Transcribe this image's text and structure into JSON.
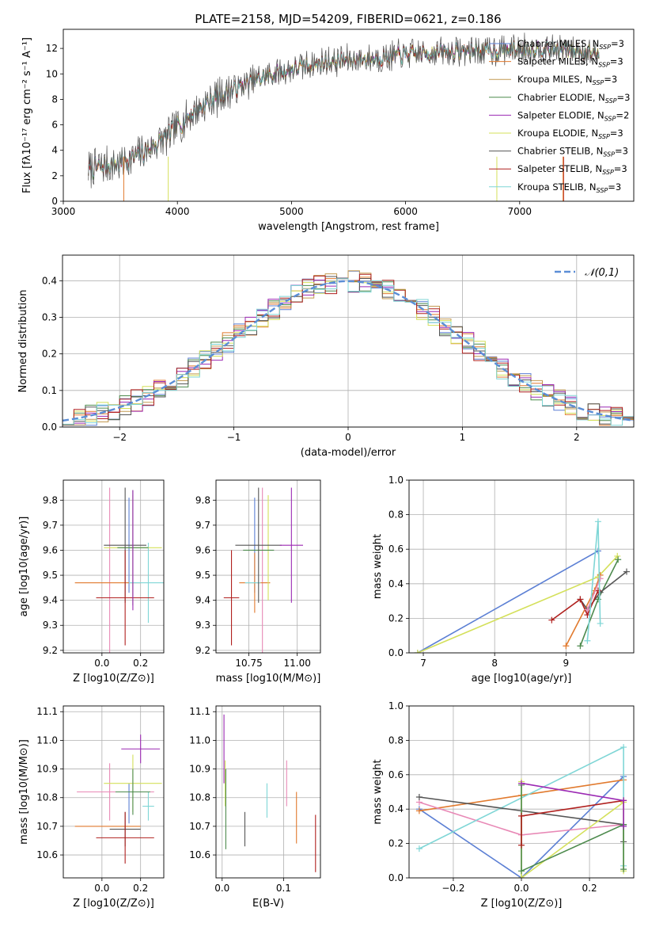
{
  "figure": {
    "suptitle": "PLATE=2158, MJD=54209, FIBERID=0621, z=0.186"
  },
  "colors": {
    "Chabrier MILES": "#5b7fd4",
    "Salpeter MILES": "#e17a2e",
    "Kroupa MILES": "#c39a52",
    "Chabrier ELODIE": "#4d8a4d",
    "Salpeter ELODIE": "#9b29b3",
    "Kroupa ELODIE": "#d4e05a",
    "Chabrier STELIB": "#555555",
    "Salpeter STELIB": "#b0201e",
    "Kroupa STELIB": "#7fd6d6",
    "pink": "#e889b6",
    "normal": "#5b8ed6"
  },
  "chart_data": [
    {
      "id": "spectrum",
      "type": "line",
      "title": "PLATE=2158, MJD=54209, FIBERID=0621, z=0.186",
      "xlabel": "wavelength [Angstrom, rest frame]",
      "ylabel": "Flux [fλ10⁻¹⁷ erg cm⁻² s⁻¹ A⁻¹]",
      "xlim": [
        3000,
        8000
      ],
      "ylim": [
        0,
        13.5
      ],
      "xticks": [
        3000,
        4000,
        5000,
        6000,
        7000
      ],
      "yticks": [
        0,
        2,
        4,
        6,
        8,
        10,
        12
      ],
      "grid": false,
      "legend_position": "top-right",
      "legend": [
        "Chabrier MILES, N_SSP=3",
        "Salpeter MILES, N_SSP=3",
        "Kroupa MILES, N_SSP=3",
        "Chabrier ELODIE, N_SSP=3",
        "Salpeter ELODIE, N_SSP=2",
        "Kroupa ELODIE, N_SSP=3",
        "Chabrier STELIB, N_SSP=3",
        "Salpeter STELIB, N_SSP=3",
        "Kroupa STELIB, N_SSP=3"
      ],
      "legend_names": [
        "Chabrier MILES",
        "Salpeter MILES",
        "Kroupa MILES",
        "Chabrier ELODIE",
        "Salpeter ELODIE",
        "Kroupa ELODIE",
        "Chabrier STELIB",
        "Salpeter STELIB",
        "Kroupa STELIB"
      ],
      "legend_ssp": [
        "3",
        "3",
        "3",
        "3",
        "2",
        "3",
        "3",
        "3",
        "3"
      ],
      "continuum": {
        "x": [
          3220,
          3500,
          3700,
          3900,
          4000,
          4150,
          4300,
          4500,
          4700,
          4900,
          5100,
          5300,
          5500,
          5700,
          5900,
          6100,
          6300,
          6500,
          6700,
          6900,
          7100,
          7300,
          7500,
          7700
        ],
        "y": [
          2.5,
          3.0,
          3.8,
          5.0,
          5.9,
          7.0,
          8.0,
          8.8,
          9.6,
          10.1,
          10.6,
          10.9,
          11.1,
          11.2,
          11.4,
          11.6,
          11.7,
          11.8,
          11.8,
          11.9,
          12.0,
          11.9,
          11.8,
          11.6
        ]
      },
      "wavelength_range": [
        3220,
        7700
      ]
    },
    {
      "id": "residual-hist",
      "type": "histogram",
      "xlabel": "(data-model)/error",
      "ylabel": "Normed distribution",
      "xlim": [
        -2.5,
        2.5
      ],
      "ylim": [
        0,
        0.47
      ],
      "xticks": [
        -2,
        -1,
        0,
        1,
        2
      ],
      "yticks": [
        0.0,
        0.1,
        0.2,
        0.3,
        0.4
      ],
      "grid": true,
      "legend_position": "top-right",
      "reference_label": "𝒩(0,1)",
      "bin_width": 0.1,
      "bin_start": -2.5,
      "series_count": 9
    },
    {
      "id": "age-vs-Z",
      "type": "errorbar",
      "xlabel": "Z [log10(Z/Z⊙)]",
      "ylabel": "age [log10(age/yr)]",
      "xlim": [
        -0.2,
        0.32
      ],
      "ylim": [
        9.19,
        9.88
      ],
      "xticks": [
        0.0,
        0.2
      ],
      "yticks": [
        9.2,
        9.3,
        9.4,
        9.5,
        9.6,
        9.7,
        9.8
      ],
      "grid": true,
      "points": [
        {
          "color": "#e889b6",
          "x": 0.04,
          "xerr": 0.0,
          "y": 9.47,
          "yerr": 0.38
        },
        {
          "color": "#5b7fd4",
          "x": 0.14,
          "xerr": 0.0,
          "y": 9.62,
          "yerr": 0.19
        },
        {
          "color": "#e17a2e",
          "x": 0.03,
          "xerr": 0.17,
          "y": 9.47,
          "yerr": 0.0
        },
        {
          "color": "#7fd6d6",
          "x": 0.24,
          "xerr": 0.1,
          "y": 9.47,
          "yerr": 0.16
        },
        {
          "color": "#d4e05a",
          "x": 0.16,
          "xerr": 0.15,
          "y": 9.61,
          "yerr": 0.21
        },
        {
          "color": "#4d8a4d",
          "x": 0.16,
          "xerr": 0.08,
          "y": 9.61,
          "yerr": 0.23
        },
        {
          "color": "#555555",
          "x": 0.12,
          "xerr": 0.11,
          "y": 9.62,
          "yerr": 0.23
        },
        {
          "color": "#b0201e",
          "x": 0.12,
          "xerr": 0.15,
          "y": 9.41,
          "yerr": 0.19
        },
        {
          "color": "#9b29b3",
          "x": 0.16,
          "xerr": 0.0,
          "y": 9.6,
          "yerr": 0.24
        }
      ]
    },
    {
      "id": "age-vs-mass",
      "type": "errorbar",
      "xlabel": "mass [log10(M/M⊙)]",
      "ylabel": "",
      "xlim": [
        10.58,
        11.12
      ],
      "ylim": [
        9.19,
        9.88
      ],
      "xticks": [
        10.75,
        11.0
      ],
      "yticks": [
        9.2,
        9.3,
        9.4,
        9.5,
        9.6,
        9.7,
        9.8
      ],
      "grid": true,
      "points": [
        {
          "color": "#e889b6",
          "x": 10.82,
          "xerr": 0.0,
          "y": 9.47,
          "yerr": 0.38
        },
        {
          "color": "#5b7fd4",
          "x": 10.78,
          "xerr": 0.0,
          "y": 9.62,
          "yerr": 0.19
        },
        {
          "color": "#e17a2e",
          "x": 10.78,
          "xerr": 0.08,
          "y": 9.47,
          "yerr": 0.12
        },
        {
          "color": "#7fd6d6",
          "x": 10.77,
          "xerr": 0.04,
          "y": 9.47,
          "yerr": 0.0
        },
        {
          "color": "#d4e05a",
          "x": 10.85,
          "xerr": 0.0,
          "y": 9.61,
          "yerr": 0.21
        },
        {
          "color": "#4d8a4d",
          "x": 10.8,
          "xerr": 0.08,
          "y": 9.6,
          "yerr": 0.0
        },
        {
          "color": "#555555",
          "x": 10.8,
          "xerr": 0.12,
          "y": 9.62,
          "yerr": 0.23
        },
        {
          "color": "#b0201e",
          "x": 10.66,
          "xerr": 0.04,
          "y": 9.41,
          "yerr": 0.19
        },
        {
          "color": "#9b29b3",
          "x": 10.97,
          "xerr": 0.06,
          "y": 9.62,
          "yerr": 0.23
        }
      ]
    },
    {
      "id": "weight-vs-age",
      "type": "line",
      "xlabel": "age [log10(age/yr)]",
      "ylabel": "mass weight",
      "xlim": [
        6.8,
        9.95
      ],
      "ylim": [
        0,
        1
      ],
      "xticks": [
        7,
        8,
        9
      ],
      "yticks": [
        0.0,
        0.2,
        0.4,
        0.6,
        0.8,
        1.0
      ],
      "grid": true,
      "series": [
        {
          "color": "#5b7fd4",
          "x": [
            6.92,
            9.45
          ],
          "y": [
            0.0,
            0.59
          ]
        },
        {
          "color": "#d4e05a",
          "x": [
            6.92,
            9.45,
            9.72
          ],
          "y": [
            0.0,
            0.44,
            0.56
          ]
        },
        {
          "color": "#e17a2e",
          "x": [
            9.0,
            9.4,
            9.48
          ],
          "y": [
            0.04,
            0.36,
            0.45
          ]
        },
        {
          "color": "#4d8a4d",
          "x": [
            9.2,
            9.45,
            9.73
          ],
          "y": [
            0.04,
            0.31,
            0.54
          ]
        },
        {
          "color": "#555555",
          "x": [
            9.2,
            9.3,
            9.48,
            9.85
          ],
          "y": [
            0.31,
            0.25,
            0.35,
            0.47
          ]
        },
        {
          "color": "#b0201e",
          "x": [
            8.8,
            9.2,
            9.3,
            9.45
          ],
          "y": [
            0.19,
            0.31,
            0.22,
            0.36
          ]
        },
        {
          "color": "#e889b6",
          "x": [
            9.3,
            9.48
          ],
          "y": [
            0.25,
            0.43
          ]
        },
        {
          "color": "#7fd6d6",
          "x": [
            9.3,
            9.45,
            9.48
          ],
          "y": [
            0.07,
            0.76,
            0.17
          ]
        }
      ]
    },
    {
      "id": "mass-vs-Z",
      "type": "errorbar",
      "xlabel": "Z [log10(Z/Z⊙)]",
      "ylabel": "mass [log10(M/M⊙)]",
      "xlim": [
        -0.2,
        0.32
      ],
      "ylim": [
        10.52,
        11.12
      ],
      "xticks": [
        0.0,
        0.2
      ],
      "yticks": [
        10.6,
        10.7,
        10.8,
        10.9,
        11.0,
        11.1
      ],
      "grid": true,
      "points": [
        {
          "color": "#e889b6",
          "x": 0.07,
          "xerr": 0.2,
          "y": 10.82,
          "yerr": 0.0
        },
        {
          "color": "#e889b6",
          "x": 0.04,
          "xerr": 0.0,
          "y": 10.82,
          "yerr": 0.1
        },
        {
          "color": "#5b7fd4",
          "x": 0.14,
          "xerr": 0.0,
          "y": 10.78,
          "yerr": 0.07
        },
        {
          "color": "#e17a2e",
          "x": 0.03,
          "xerr": 0.17,
          "y": 10.7,
          "yerr": 0.0
        },
        {
          "color": "#7fd6d6",
          "x": 0.24,
          "xerr": 0.03,
          "y": 10.77,
          "yerr": 0.05
        },
        {
          "color": "#d4e05a",
          "x": 0.16,
          "xerr": 0.15,
          "y": 10.85,
          "yerr": 0.1
        },
        {
          "color": "#4d8a4d",
          "x": 0.16,
          "xerr": 0.09,
          "y": 10.82,
          "yerr": 0.08
        },
        {
          "color": "#555555",
          "x": 0.12,
          "xerr": 0.08,
          "y": 10.69,
          "yerr": 0.06
        },
        {
          "color": "#b0201e",
          "x": 0.12,
          "xerr": 0.15,
          "y": 10.66,
          "yerr": 0.09
        },
        {
          "color": "#9b29b3",
          "x": 0.2,
          "xerr": 0.1,
          "y": 10.97,
          "yerr": 0.05
        }
      ]
    },
    {
      "id": "mass-vs-ebv",
      "type": "errorbar",
      "xlabel": "E(B-V)",
      "ylabel": "",
      "xlim": [
        -0.01,
        0.16
      ],
      "ylim": [
        10.52,
        11.12
      ],
      "xticks": [
        0.0,
        0.1
      ],
      "yticks": [
        10.6,
        10.7,
        10.8,
        10.9,
        11.0,
        11.1
      ],
      "grid": true,
      "points": [
        {
          "color": "#9b29b3",
          "x": 0.003,
          "xerr": 0.0,
          "y": 10.97,
          "yerr": 0.12
        },
        {
          "color": "#d4e05a",
          "x": 0.005,
          "xerr": 0.0,
          "y": 10.85,
          "yerr": 0.08
        },
        {
          "color": "#4d8a4d",
          "x": 0.006,
          "xerr": 0.0,
          "y": 10.76,
          "yerr": 0.14
        },
        {
          "color": "#555555",
          "x": 0.037,
          "xerr": 0.0,
          "y": 10.69,
          "yerr": 0.06
        },
        {
          "color": "#7fd6d6",
          "x": 0.073,
          "xerr": 0.0,
          "y": 10.79,
          "yerr": 0.06
        },
        {
          "color": "#e889b6",
          "x": 0.105,
          "xerr": 0.0,
          "y": 10.85,
          "yerr": 0.08
        },
        {
          "color": "#e17a2e",
          "x": 0.121,
          "xerr": 0.0,
          "y": 10.73,
          "yerr": 0.09
        },
        {
          "color": "#b0201e",
          "x": 0.152,
          "xerr": 0.0,
          "y": 10.64,
          "yerr": 0.1
        }
      ]
    },
    {
      "id": "weight-vs-Z",
      "type": "line",
      "xlabel": "Z [log10(Z/Z⊙)]",
      "ylabel": "mass weight",
      "xlim": [
        -0.33,
        0.33
      ],
      "ylim": [
        0,
        1
      ],
      "xticks": [
        -0.2,
        0.0,
        0.2
      ],
      "yticks": [
        0.0,
        0.2,
        0.4,
        0.6,
        0.8,
        1.0
      ],
      "grid": true,
      "series": [
        {
          "color": "#5b7fd4",
          "x": [
            -0.3,
            0.0,
            0.3
          ],
          "y": [
            0.4,
            0.0,
            0.59
          ]
        },
        {
          "color": "#e17a2e",
          "x": [
            -0.3,
            0.0,
            0.3
          ],
          "y": [
            0.39,
            0.48,
            0.57
          ]
        },
        {
          "color": "#e889b6",
          "x": [
            -0.3,
            0.0,
            0.3
          ],
          "y": [
            0.44,
            0.25,
            0.31
          ]
        },
        {
          "color": "#7fd6d6",
          "x": [
            -0.3,
            0.3,
            0.3
          ],
          "y": [
            0.17,
            0.76,
            0.07
          ]
        },
        {
          "color": "#555555",
          "x": [
            -0.3,
            0.3,
            0.3
          ],
          "y": [
            0.47,
            0.31,
            0.21
          ]
        },
        {
          "color": "#d4e05a",
          "x": [
            0.0,
            0.0,
            0.3,
            0.3
          ],
          "y": [
            0.56,
            0.0,
            0.44,
            0.04
          ]
        },
        {
          "color": "#4d8a4d",
          "x": [
            0.0,
            0.0,
            0.3,
            0.3
          ],
          "y": [
            0.54,
            0.04,
            0.31,
            0.05
          ]
        },
        {
          "color": "#b0201e",
          "x": [
            0.0,
            0.0,
            0.3
          ],
          "y": [
            0.19,
            0.36,
            0.45
          ]
        },
        {
          "color": "#9b29b3",
          "x": [
            0.0,
            0.3,
            0.3
          ],
          "y": [
            0.55,
            0.45,
            0.3
          ]
        }
      ]
    }
  ]
}
